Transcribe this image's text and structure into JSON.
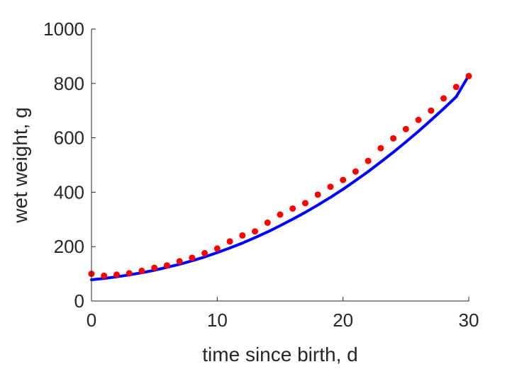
{
  "chart_data": {
    "type": "scatter",
    "xlabel": "time since birth, d",
    "ylabel": "wet weight, g",
    "xlim": [
      0,
      30
    ],
    "ylim": [
      0,
      1000
    ],
    "xticks": [
      "0",
      "10",
      "20",
      "30"
    ],
    "yticks": [
      "0",
      "200",
      "400",
      "600",
      "800",
      "1000"
    ],
    "grid": false,
    "series": [
      {
        "kind": "points",
        "color": "#ff0000",
        "x": [
          0,
          1,
          2,
          3,
          4,
          5,
          6,
          7,
          8,
          9,
          10,
          11,
          12,
          13,
          14,
          15,
          16,
          17,
          18,
          19,
          20,
          21,
          22,
          23,
          24,
          25,
          26,
          27,
          28,
          29,
          30
        ],
        "y": [
          100,
          93,
          97,
          102,
          111,
          122,
          131,
          146,
          159,
          176,
          193,
          219,
          241,
          256,
          288,
          318,
          340,
          360,
          391,
          420,
          445,
          476,
          515,
          562,
          598,
          632,
          666,
          700,
          745,
          787,
          827
        ]
      },
      {
        "kind": "curve",
        "color": "#0000ff",
        "x": [
          0,
          1,
          2,
          3,
          4,
          5,
          6,
          7,
          8,
          9,
          10,
          11,
          12,
          13,
          14,
          15,
          16,
          17,
          18,
          19,
          20,
          21,
          22,
          23,
          24,
          25,
          26,
          27,
          28,
          29,
          30
        ],
        "y": [
          78,
          83,
          89,
          96,
          104,
          113,
          124,
          135,
          148,
          162,
          178,
          195,
          213,
          233,
          254,
          277,
          301,
          326,
          353,
          381,
          411,
          443,
          476,
          511,
          547,
          585,
          624,
          665,
          707,
          751,
          829
        ]
      }
    ]
  }
}
